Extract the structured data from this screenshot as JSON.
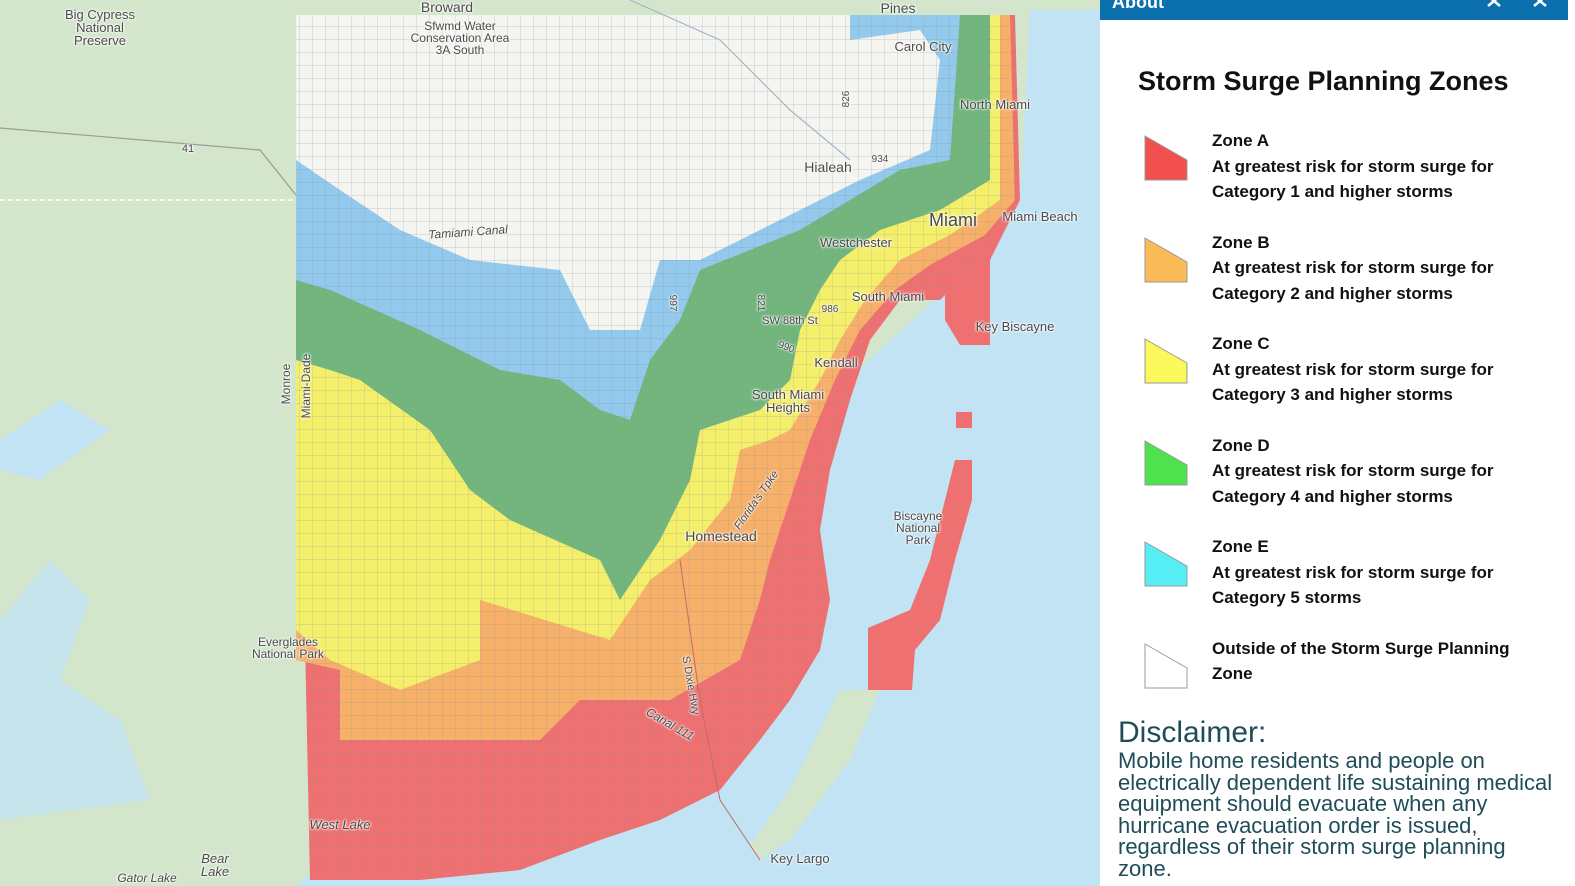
{
  "map": {
    "labels": [
      "Big Cypress National Preserve",
      "Broward",
      "Sfwmd Water Conservation Area 3A South",
      "Pines",
      "Carol City",
      "North Miami",
      "Hialeah",
      "Miami",
      "Miami Beach",
      "Westchester",
      "Tamiami Canal",
      "South Miami",
      "Key Biscayne",
      "Kendall",
      "South Miami Heights",
      "Homestead",
      "Biscayne National Park",
      "Everglades National Park",
      "Monroe",
      "Miami-Dade",
      "West Lake",
      "Key Largo",
      "Bear Lake",
      "Gator Lake",
      "41",
      "SW 88th St",
      "Canal 111",
      "S Dixie Hwy",
      "Florida's Tpke",
      "826",
      "934",
      "997",
      "821",
      "990",
      "986"
    ]
  },
  "panel": {
    "header": "About",
    "legend": {
      "title": "Storm Surge Planning Zones",
      "items": [
        {
          "name": "Zone A",
          "description": "At greatest risk for storm surge for Category 1 and higher storms",
          "color": "#f24f4f"
        },
        {
          "name": "Zone B",
          "description": "At greatest risk for storm surge for Category 2 and higher storms",
          "color": "#f9bb57"
        },
        {
          "name": "Zone C",
          "description": "At greatest risk for storm surge for Category 3 and higher storms",
          "color": "#fbf85c"
        },
        {
          "name": "Zone D",
          "description": "At greatest risk for storm surge for Category 4 and higher storms",
          "color": "#4fe24f"
        },
        {
          "name": "Zone E",
          "description": "At greatest risk for storm surge for Category 5 storms",
          "color": "#55eef5"
        },
        {
          "name": "Outside of the Storm Surge Planning Zone",
          "color": "#ffffff"
        }
      ]
    },
    "disclaimer": {
      "heading": "Disclaimer:",
      "text": "Mobile home residents and people on electrically dependent life sustaining medical equipment should evacuate when any hurricane evacuation order is issued, regardless of their storm surge planning zone."
    }
  }
}
